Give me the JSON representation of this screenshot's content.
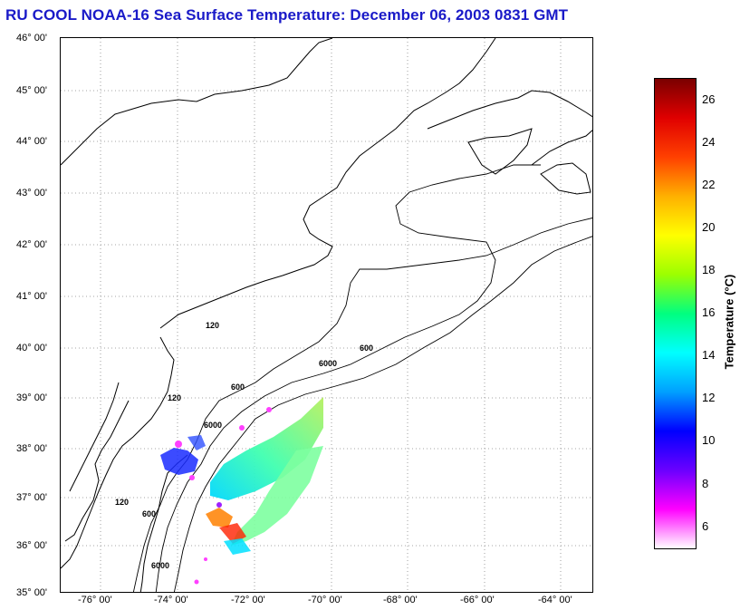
{
  "title": "RU COOL  NOAA-16  Sea Surface Temperature:  December 06, 2003 0831 GMT",
  "map": {
    "lat_labels": [
      "46° 00'",
      "45° 00'",
      "44° 00'",
      "43° 00'",
      "42° 00'",
      "41° 00'",
      "40° 00'",
      "39° 00'",
      "38° 00'",
      "37° 00'",
      "36° 00'",
      "35° 00'"
    ],
    "lon_labels": [
      "-76° 00'",
      "-74° 00'",
      "-72° 00'",
      "-70° 00'",
      "-68° 00'",
      "-66° 00'",
      "-64° 00'"
    ],
    "lat_range": [
      35,
      46
    ],
    "lon_range": [
      -77,
      -63.5
    ],
    "grid": "dotted",
    "contour_labels": [
      "120",
      "600",
      "6000"
    ]
  },
  "colorbar": {
    "label": "Temperature (°C)",
    "ticks": [
      "26",
      "24",
      "22",
      "20",
      "18",
      "16",
      "14",
      "12",
      "10",
      "8",
      "6"
    ],
    "range": [
      5,
      27
    ],
    "colors": [
      "#ffffff",
      "#ff00ff",
      "#6a00ff",
      "#0000ff",
      "#00a0ff",
      "#00ffff",
      "#00ff80",
      "#9cff00",
      "#ffff00",
      "#ffb000",
      "#ff4000",
      "#e00000",
      "#7a0000"
    ]
  }
}
